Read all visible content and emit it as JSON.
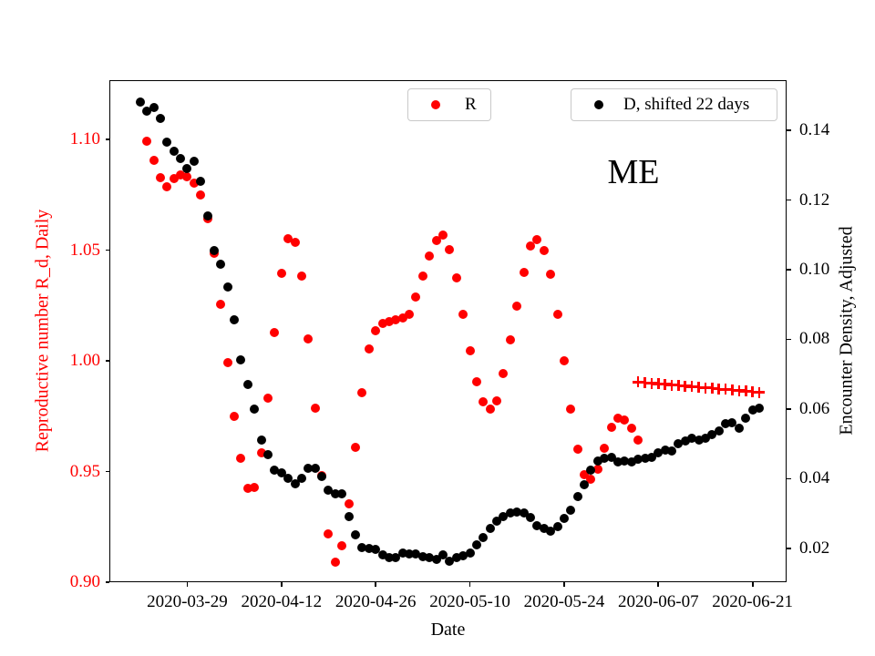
{
  "chart_data": {
    "type": "scatter",
    "title": "",
    "annotation": "ME",
    "xlabel": "Date",
    "ylabel_left": "Reproductive number R_d, Daily",
    "ylabel_right": "Encounter Density, Adjusted",
    "grid": false,
    "colors": {
      "left_axis": "#ff0000",
      "right_axis": "#000000",
      "background": "#ffffff",
      "legend_border": "#c9c9c9"
    },
    "x_axis": {
      "anchor_date": "2020-03-29",
      "range_days": [
        -11.57,
        89.06
      ],
      "ticks": [
        "2020-03-29",
        "2020-04-12",
        "2020-04-26",
        "2020-05-10",
        "2020-05-24",
        "2020-06-07",
        "2020-06-21"
      ]
    },
    "y_axis_left": {
      "range": [
        0.9,
        1.1268
      ],
      "tick_values": [
        0.9,
        0.95,
        1.0,
        1.05,
        1.1
      ],
      "tick_labels": [
        "0.90",
        "0.95",
        "1.00",
        "1.05",
        "1.10"
      ]
    },
    "y_axis_right": {
      "range": [
        0.0103,
        0.1544
      ],
      "tick_values": [
        0.02,
        0.04,
        0.06,
        0.08,
        0.1,
        0.12,
        0.14
      ],
      "tick_labels": [
        "0.02",
        "0.04",
        "0.06",
        "0.08",
        "0.10",
        "0.12",
        "0.14"
      ]
    },
    "legend": [
      {
        "label": "R",
        "marker": "circle",
        "color": "#ff0000"
      },
      {
        "label": "D, shifted 22 days",
        "marker": "circle",
        "color": "#000000"
      }
    ],
    "series": [
      {
        "name": "R",
        "axis": "left",
        "marker": "circle",
        "color": "#ff0000",
        "start_date": "2020-03-23",
        "cadence_days": 1,
        "values": [
          1.0993,
          1.0905,
          1.0828,
          1.0787,
          1.0822,
          1.0838,
          1.0832,
          1.0801,
          1.075,
          1.0641,
          1.0486,
          1.0256,
          0.9991,
          0.9748,
          0.9558,
          0.9425,
          0.9428,
          0.9583,
          0.983,
          1.0128,
          1.0396,
          1.0551,
          1.0536,
          1.0383,
          1.01,
          0.9785,
          0.948,
          0.9218,
          0.9091,
          0.9163,
          0.9355,
          0.961,
          0.9857,
          1.0055,
          1.0137,
          1.017,
          1.0177,
          1.0184,
          1.0193,
          1.0211,
          1.0287,
          1.0383,
          1.0472,
          1.0543,
          1.0568,
          1.0503,
          1.0376,
          1.0211,
          1.0045,
          0.9904,
          0.9815,
          0.9782,
          0.9819,
          0.9942,
          1.0093,
          1.0246,
          1.0399,
          1.0517,
          1.0547,
          1.0497,
          1.039,
          1.0211,
          1.0,
          0.9781,
          0.96,
          0.9487,
          0.9466,
          0.951,
          0.9606,
          0.9698,
          0.9741,
          0.9733,
          0.9696,
          0.9643
        ]
      },
      {
        "name": "R recent (plus markers)",
        "axis": "left",
        "marker": "plus",
        "color": "#ff0000",
        "start_date": "2020-06-04",
        "cadence_days": 1,
        "values": [
          0.9904,
          0.9902,
          0.9899,
          0.9896,
          0.9894,
          0.9891,
          0.9889,
          0.9886,
          0.9884,
          0.9881,
          0.9878,
          0.9876,
          0.9873,
          0.9871,
          0.9868,
          0.9866,
          0.9863,
          0.986,
          0.9858
        ]
      },
      {
        "name": "D, shifted 22 days",
        "axis": "right",
        "marker": "circle",
        "color": "#000000",
        "start_date": "2020-03-22",
        "cadence_days": 1,
        "values": [
          0.148,
          0.1455,
          0.1465,
          0.1435,
          0.1365,
          0.134,
          0.132,
          0.129,
          0.131,
          0.1255,
          0.1155,
          0.1055,
          0.1015,
          0.095,
          0.0855,
          0.074,
          0.067,
          0.06,
          0.0512,
          0.047,
          0.0425,
          0.0416,
          0.0401,
          0.0386,
          0.0401,
          0.043,
          0.043,
          0.0406,
          0.0368,
          0.0356,
          0.0357,
          0.0291,
          0.024,
          0.0203,
          0.0199,
          0.0197,
          0.0181,
          0.0173,
          0.0173,
          0.0186,
          0.0184,
          0.0184,
          0.0177,
          0.0173,
          0.0169,
          0.0181,
          0.0163,
          0.0173,
          0.0179,
          0.0186,
          0.021,
          0.0231,
          0.0256,
          0.0278,
          0.0291,
          0.0303,
          0.0305,
          0.0303,
          0.0288,
          0.0266,
          0.0256,
          0.025,
          0.0262,
          0.0285,
          0.031,
          0.0349,
          0.0384,
          0.0425,
          0.0452,
          0.0458,
          0.0461,
          0.0449,
          0.0451,
          0.0449,
          0.0456,
          0.0458,
          0.0461,
          0.0474,
          0.0482,
          0.048,
          0.0501,
          0.0509,
          0.0515,
          0.0512,
          0.0515,
          0.0526,
          0.0536,
          0.0558,
          0.0561,
          0.0545,
          0.0573,
          0.0596,
          0.0602
        ]
      }
    ]
  }
}
